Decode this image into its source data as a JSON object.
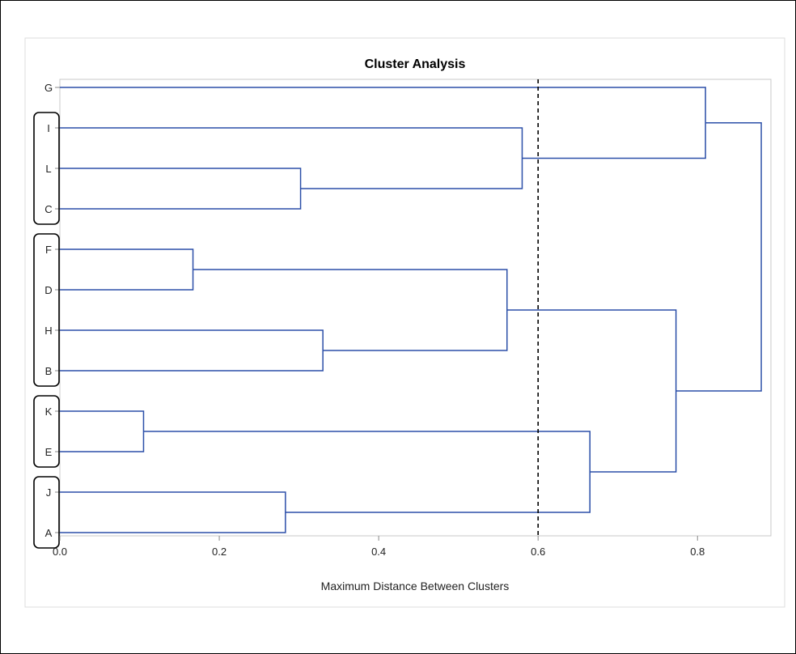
{
  "chart_data": {
    "type": "dendrogram",
    "title": "Cluster Analysis",
    "xlabel": "Maximum Distance Between Clusters",
    "ylabel": "",
    "xlim": [
      0.0,
      0.885
    ],
    "x_ticks": [
      "0.0",
      "0.2",
      "0.4",
      "0.6",
      "0.8"
    ],
    "x_tick_values": [
      0.0,
      0.2,
      0.4,
      0.6,
      0.8
    ],
    "leaves": [
      "G",
      "I",
      "L",
      "C",
      "F",
      "D",
      "H",
      "B",
      "K",
      "E",
      "J",
      "A"
    ],
    "merges": [
      {
        "left": "K",
        "right": "E",
        "distance": 0.105
      },
      {
        "left": "F",
        "right": "D",
        "distance": 0.167
      },
      {
        "left": "J",
        "right": "A",
        "distance": 0.283
      },
      {
        "left": "L",
        "right": "C",
        "distance": 0.302
      },
      {
        "left": "H",
        "right": "B",
        "distance": 0.33
      },
      {
        "left": "F,D",
        "right": "H,B",
        "distance": 0.561
      },
      {
        "left": "I",
        "right": "L,C",
        "distance": 0.58
      },
      {
        "left": "K,E",
        "right": "J,A",
        "distance": 0.665
      },
      {
        "left": "F,D,H,B",
        "right": "K,E,J,A",
        "distance": 0.773
      },
      {
        "left": "G",
        "right": "I,L,C",
        "distance": 0.81
      },
      {
        "left": "G,I,L,C",
        "right": "F,D,H,B,K,E,J,A",
        "distance": 0.88
      }
    ],
    "cut_distance": 0.6,
    "highlighted_groups": [
      [
        "I",
        "L",
        "C"
      ],
      [
        "F",
        "D",
        "H",
        "B"
      ],
      [
        "K",
        "E"
      ],
      [
        "J",
        "A"
      ]
    ],
    "colors": {
      "branch": "#2b4fa8",
      "frame": "#c8c8c8",
      "cut_line": "#000000"
    }
  }
}
